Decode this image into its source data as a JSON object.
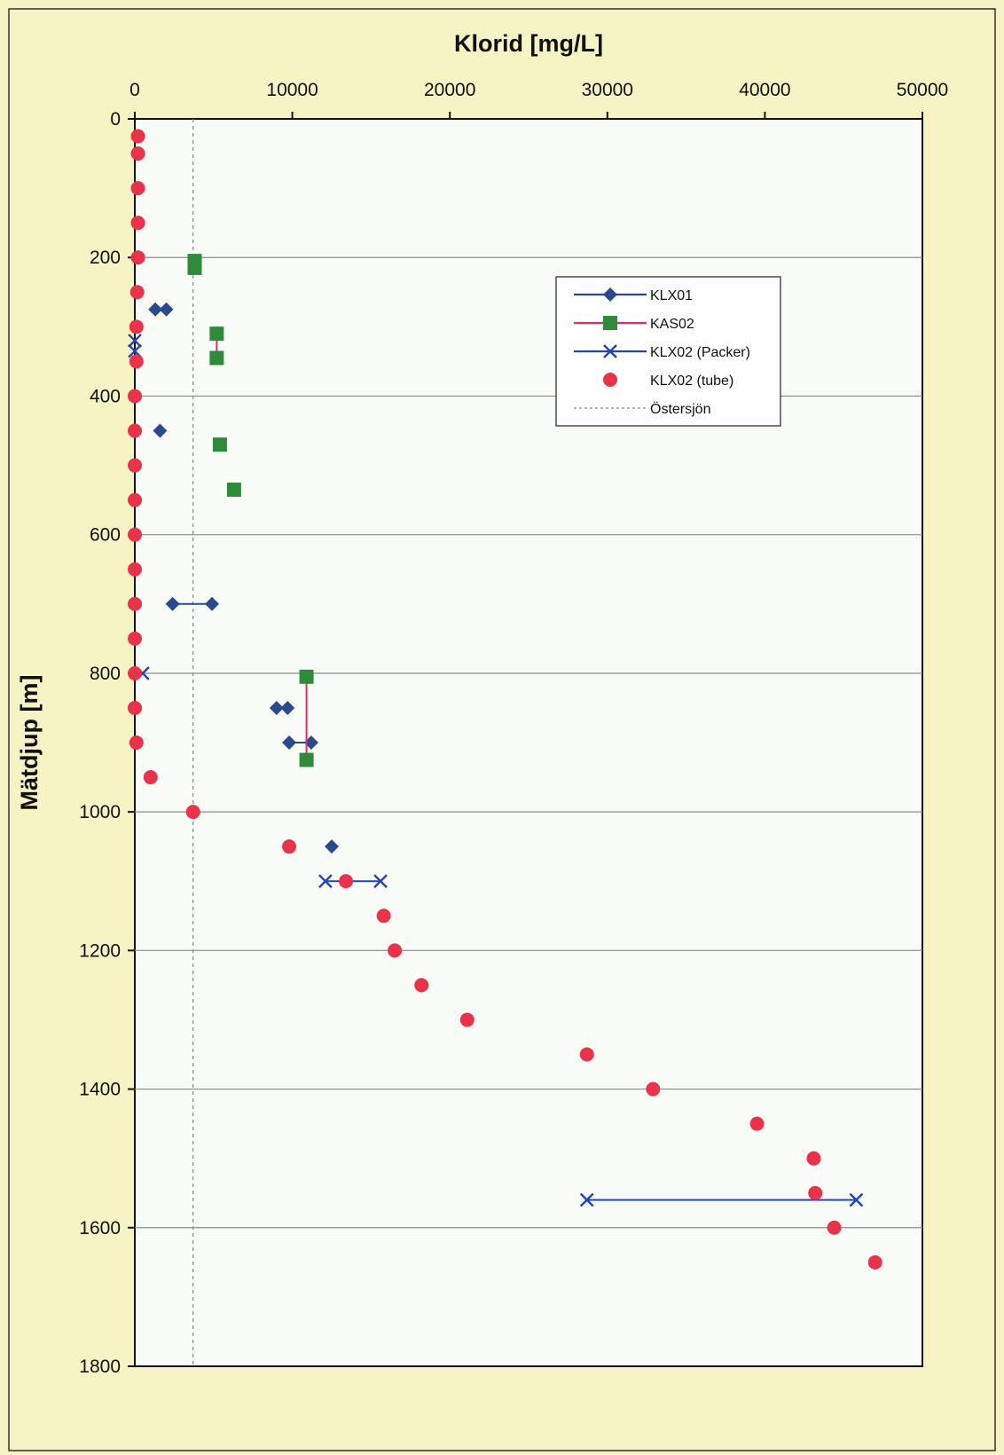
{
  "chart_data": {
    "type": "scatter",
    "title": "",
    "xlabel": "Klorid [mg/L]",
    "ylabel": "Mätdjup [m]",
    "xlim": [
      0,
      50000
    ],
    "ylim": [
      0,
      1800
    ],
    "y_inverted": true,
    "x_axis_position": "top",
    "x_ticks": [
      0,
      10000,
      20000,
      30000,
      40000,
      50000
    ],
    "y_ticks": [
      0,
      200,
      400,
      600,
      800,
      1000,
      1200,
      1400,
      1600,
      1800
    ],
    "x_tick_labels": [
      "0",
      "10000",
      "20000",
      "30000",
      "40000",
      "50000"
    ],
    "y_tick_labels": [
      "0",
      "200",
      "400",
      "600",
      "800",
      "1000",
      "1200",
      "1400",
      "1600",
      "1800"
    ],
    "grid": "horizontal",
    "legend_position": "top-right",
    "series": [
      {
        "name": "KLX01",
        "color": "#2b4a8c",
        "marker": "diamond",
        "segments": [
          [
            [
              1300,
              275
            ],
            [
              2000,
              275
            ]
          ],
          [
            [
              1600,
              450
            ]
          ],
          [
            [
              2400,
              700
            ],
            [
              4900,
              700
            ]
          ],
          [
            [
              9000,
              850
            ],
            [
              9700,
              850
            ]
          ],
          [
            [
              9800,
              900
            ],
            [
              11200,
              900
            ]
          ],
          [
            [
              12500,
              1050
            ]
          ]
        ]
      },
      {
        "name": "KAS02",
        "color": "#2e8b3a",
        "line_color": "#d8306e",
        "marker": "square",
        "segments": [
          [
            [
              3800,
              205
            ],
            [
              3800,
              215
            ]
          ],
          [
            [
              5200,
              310
            ],
            [
              5200,
              345
            ]
          ],
          [
            [
              5400,
              470
            ]
          ],
          [
            [
              6300,
              535
            ]
          ],
          [
            [
              10900,
              805
            ],
            [
              10900,
              925
            ]
          ]
        ]
      },
      {
        "name": "KLX02 (Packer)",
        "color": "#2444b0",
        "marker": "x",
        "segments": [
          [
            [
              0,
              320
            ]
          ],
          [
            [
              0,
              335
            ]
          ],
          [
            [
              500,
              800
            ]
          ],
          [
            [
              12100,
              1100
            ],
            [
              15600,
              1100
            ]
          ],
          [
            [
              28700,
              1560
            ],
            [
              45800,
              1560
            ]
          ]
        ]
      },
      {
        "name": "KLX02 (tube)",
        "color": "#e8334a",
        "marker": "circle",
        "points": [
          [
            200,
            25
          ],
          [
            200,
            50
          ],
          [
            200,
            100
          ],
          [
            200,
            150
          ],
          [
            200,
            200
          ],
          [
            150,
            250
          ],
          [
            100,
            300
          ],
          [
            100,
            350
          ],
          [
            0,
            400
          ],
          [
            0,
            450
          ],
          [
            0,
            500
          ],
          [
            0,
            550
          ],
          [
            0,
            600
          ],
          [
            0,
            650
          ],
          [
            0,
            700
          ],
          [
            0,
            750
          ],
          [
            0,
            800
          ],
          [
            0,
            850
          ],
          [
            100,
            900
          ],
          [
            1000,
            950
          ],
          [
            3700,
            1000
          ],
          [
            9800,
            1050
          ],
          [
            13400,
            1100
          ],
          [
            15800,
            1150
          ],
          [
            16500,
            1200
          ],
          [
            18200,
            1250
          ],
          [
            21100,
            1300
          ],
          [
            28700,
            1350
          ],
          [
            32900,
            1400
          ],
          [
            39500,
            1450
          ],
          [
            43100,
            1500
          ],
          [
            43200,
            1550
          ],
          [
            44400,
            1600
          ],
          [
            47000,
            1650
          ]
        ]
      },
      {
        "name": "Östersjön",
        "color": "#7a8aa0",
        "style": "dashed-vertical",
        "x": 3700
      }
    ]
  }
}
